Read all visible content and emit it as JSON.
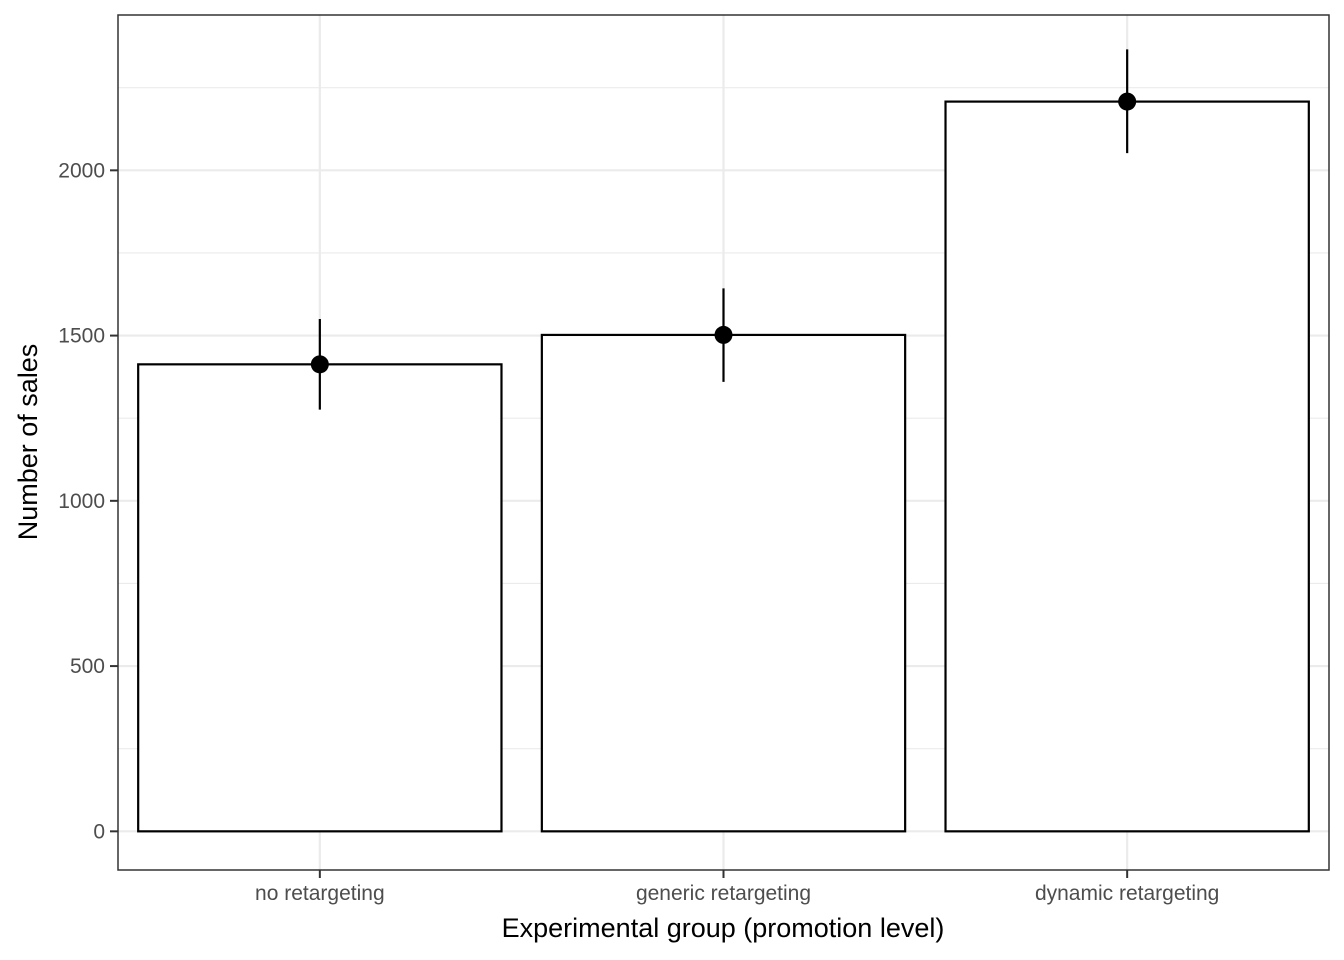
{
  "chart_data": {
    "type": "bar",
    "title": "",
    "xlabel": "Experimental group (promotion level)",
    "ylabel": "Number of sales",
    "categories": [
      "no retargeting",
      "generic retargeting",
      "dynamic retargeting"
    ],
    "values": [
      1413,
      1502,
      2208
    ],
    "error_low": [
      1276,
      1360,
      2052
    ],
    "error_high": [
      1550,
      1643,
      2366
    ],
    "ylim": [
      -117,
      2470
    ],
    "yticks": [
      0,
      500,
      1000,
      1500,
      2000
    ],
    "ytick_labels": [
      "0",
      "500",
      "1000",
      "1500",
      "2000"
    ],
    "grid": true,
    "legend": "none",
    "colors": {
      "bar_fill": "#ffffff",
      "bar_stroke": "#000000",
      "point": "#000000",
      "grid": "#ebebeb",
      "panel_border": "#333333"
    }
  }
}
